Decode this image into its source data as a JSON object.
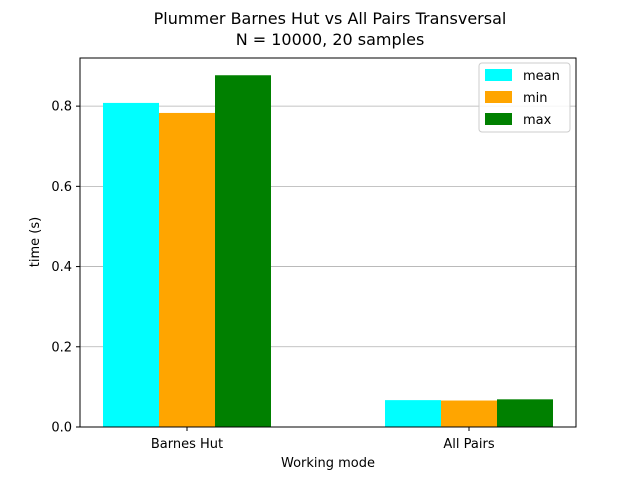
{
  "chart_data": {
    "type": "bar",
    "title": "Plummer Barnes Hut vs All Pairs Transversal",
    "subtitle": "N = 10000, 20 samples",
    "xlabel": "Working mode",
    "ylabel": "time (s)",
    "categories": [
      "Barnes Hut",
      "All Pairs"
    ],
    "series": [
      {
        "name": "mean",
        "color": "#00ffff",
        "values": [
          0.808,
          0.067
        ]
      },
      {
        "name": "min",
        "color": "#ffa500",
        "values": [
          0.783,
          0.066
        ]
      },
      {
        "name": "max",
        "color": "#008000",
        "values": [
          0.877,
          0.069
        ]
      }
    ],
    "ylim": [
      0,
      0.92
    ],
    "yticks": [
      0.0,
      0.2,
      0.4,
      0.6,
      0.8
    ],
    "ytick_labels": [
      "0.0",
      "0.2",
      "0.4",
      "0.6",
      "0.8"
    ],
    "grid": "y",
    "legend_position": "top-right"
  }
}
